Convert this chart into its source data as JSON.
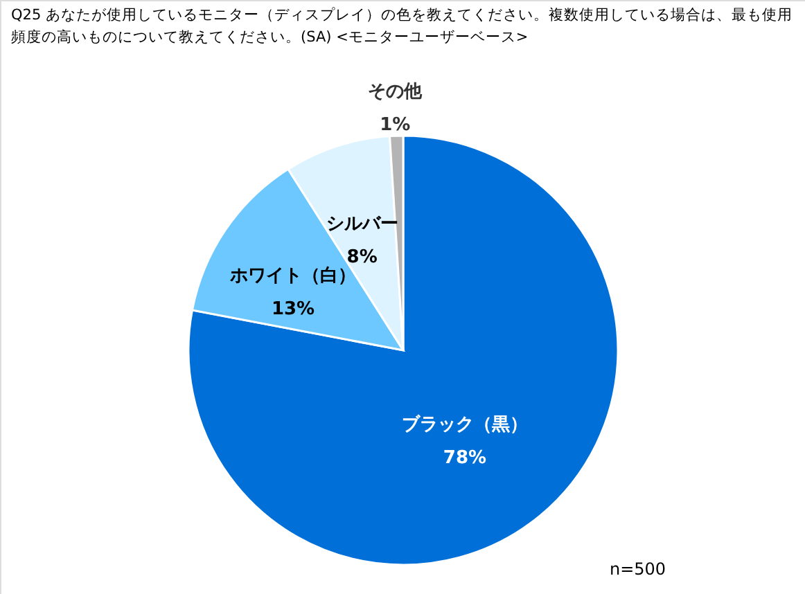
{
  "chart_data": {
    "type": "pie",
    "title": "Q25 あなたが使用しているモニター（ディスプレイ）の色を教えてください。複数使用している場合は、最も使用頻度の高いものについて教えてください。(SA) <モニターユーザーベース>",
    "categories": [
      "ブラック（黒）",
      "ホワイト（白）",
      "シルバー",
      "その他"
    ],
    "values": [
      78,
      13,
      8,
      1
    ],
    "colors": [
      "#0070d8",
      "#6cc8ff",
      "#ddf3ff",
      "#b4b4b4"
    ],
    "value_labels": [
      "78%",
      "13%",
      "8%",
      "1%"
    ],
    "annotations": [
      "n=500"
    ]
  }
}
